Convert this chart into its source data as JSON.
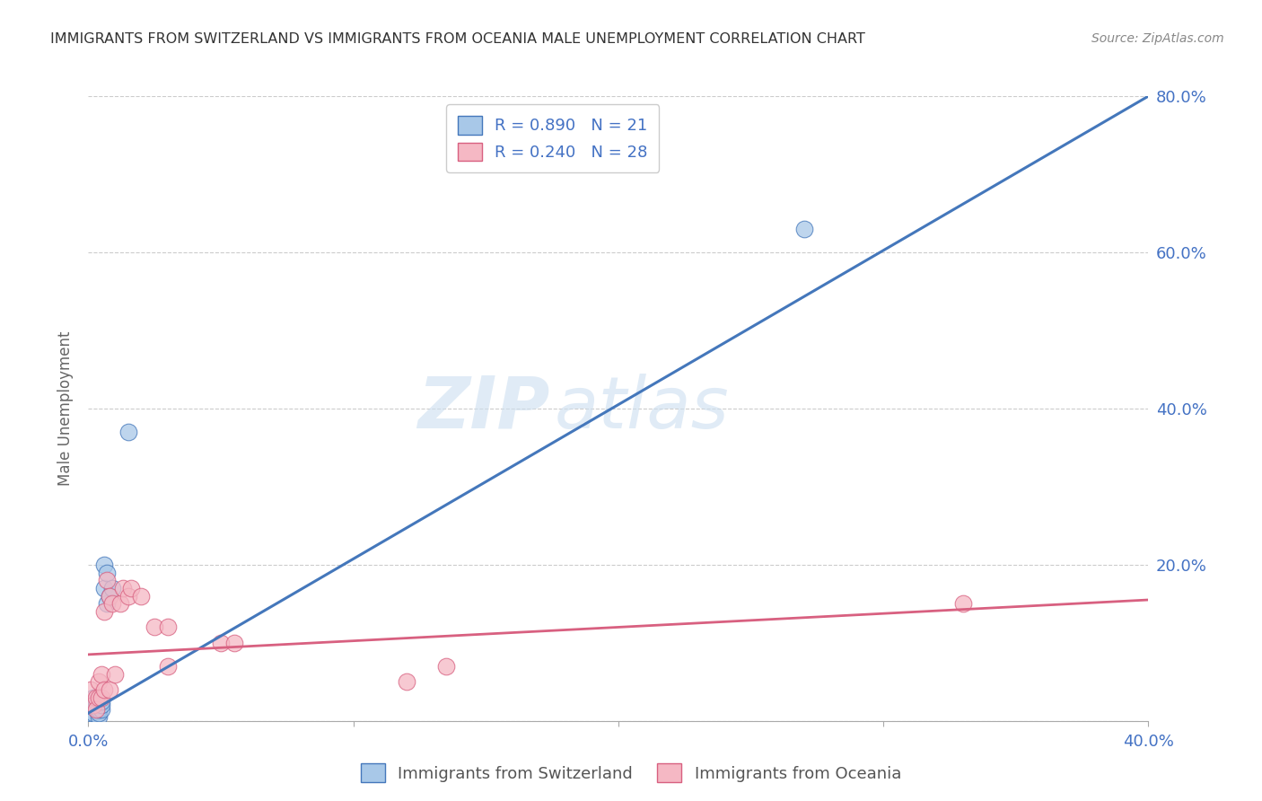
{
  "title": "IMMIGRANTS FROM SWITZERLAND VS IMMIGRANTS FROM OCEANIA MALE UNEMPLOYMENT CORRELATION CHART",
  "source": "Source: ZipAtlas.com",
  "ylabel": "Male Unemployment",
  "xlim": [
    0.0,
    0.4
  ],
  "ylim": [
    0.0,
    0.8
  ],
  "blue_label": "Immigrants from Switzerland",
  "pink_label": "Immigrants from Oceania",
  "blue_R": 0.89,
  "blue_N": 21,
  "pink_R": 0.24,
  "pink_N": 28,
  "blue_color": "#a8c8e8",
  "blue_line_color": "#4477bb",
  "blue_edge_color": "#4477bb",
  "pink_color": "#f5b8c4",
  "pink_line_color": "#d86080",
  "pink_edge_color": "#d86080",
  "blue_scatter_x": [
    0.001,
    0.001,
    0.002,
    0.002,
    0.003,
    0.003,
    0.003,
    0.004,
    0.004,
    0.004,
    0.005,
    0.005,
    0.005,
    0.006,
    0.006,
    0.007,
    0.007,
    0.008,
    0.009,
    0.015,
    0.27
  ],
  "blue_scatter_y": [
    0.01,
    0.02,
    0.01,
    0.03,
    0.015,
    0.02,
    0.025,
    0.005,
    0.01,
    0.015,
    0.015,
    0.02,
    0.025,
    0.2,
    0.17,
    0.15,
    0.19,
    0.16,
    0.17,
    0.37,
    0.63
  ],
  "pink_scatter_x": [
    0.001,
    0.002,
    0.003,
    0.003,
    0.004,
    0.004,
    0.005,
    0.005,
    0.006,
    0.006,
    0.007,
    0.008,
    0.008,
    0.009,
    0.01,
    0.012,
    0.013,
    0.015,
    0.016,
    0.02,
    0.025,
    0.03,
    0.03,
    0.05,
    0.055,
    0.12,
    0.135,
    0.33
  ],
  "pink_scatter_y": [
    0.04,
    0.02,
    0.03,
    0.015,
    0.05,
    0.03,
    0.06,
    0.03,
    0.14,
    0.04,
    0.18,
    0.16,
    0.04,
    0.15,
    0.06,
    0.15,
    0.17,
    0.16,
    0.17,
    0.16,
    0.12,
    0.12,
    0.07,
    0.1,
    0.1,
    0.05,
    0.07,
    0.15
  ],
  "blue_line_x": [
    0.0,
    0.4
  ],
  "blue_line_y": [
    0.01,
    0.8
  ],
  "pink_line_x": [
    0.0,
    0.4
  ],
  "pink_line_y": [
    0.085,
    0.155
  ],
  "watermark_zip": "ZIP",
  "watermark_atlas": "atlas",
  "background_color": "#ffffff",
  "grid_color": "#cccccc",
  "title_color": "#333333",
  "tick_color": "#4472c4",
  "ylabel_color": "#666666"
}
